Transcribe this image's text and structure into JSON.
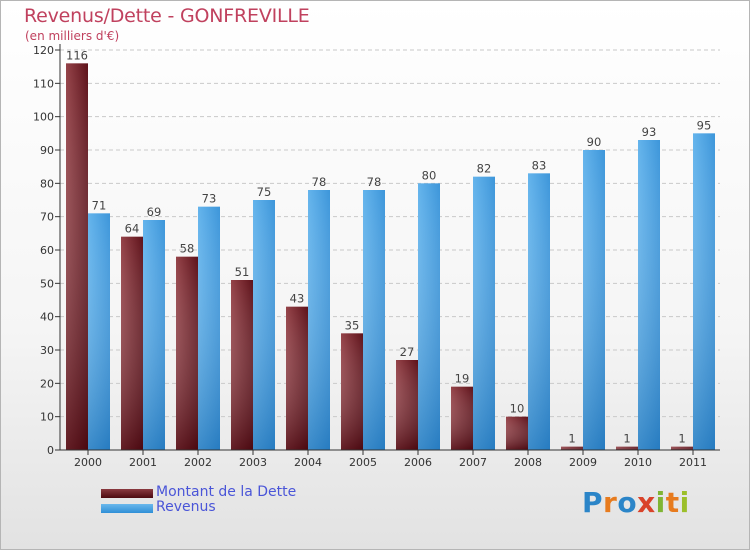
{
  "header": {
    "title": "Revenus/Dette - GONFREVILLE",
    "subtitle": "(en milliers d'€)"
  },
  "chart_data": {
    "type": "bar",
    "categories": [
      "2000",
      "2001",
      "2002",
      "2003",
      "2004",
      "2005",
      "2006",
      "2007",
      "2008",
      "2009",
      "2010",
      "2011"
    ],
    "series": [
      {
        "name": "Montant de la Dette",
        "values": [
          116,
          64,
          58,
          51,
          43,
          35,
          27,
          19,
          10,
          1,
          1,
          1
        ],
        "color": "#7a2a30"
      },
      {
        "name": "Revenus",
        "values": [
          71,
          69,
          73,
          75,
          78,
          78,
          80,
          82,
          83,
          90,
          93,
          95
        ],
        "color": "#4ea6e6"
      }
    ],
    "ylim": [
      0,
      120
    ],
    "yticks": [
      0,
      10,
      20,
      30,
      40,
      50,
      60,
      70,
      80,
      90,
      100,
      110,
      120
    ],
    "grid": true,
    "legend_position": "bottom-left"
  },
  "legend": {
    "dette_label": "Montant de la Dette",
    "revenus_label": "Revenus"
  },
  "logo": {
    "letters": [
      "P",
      "r",
      "o",
      "x",
      "i",
      "t",
      "i"
    ],
    "text": "Proxiti"
  }
}
